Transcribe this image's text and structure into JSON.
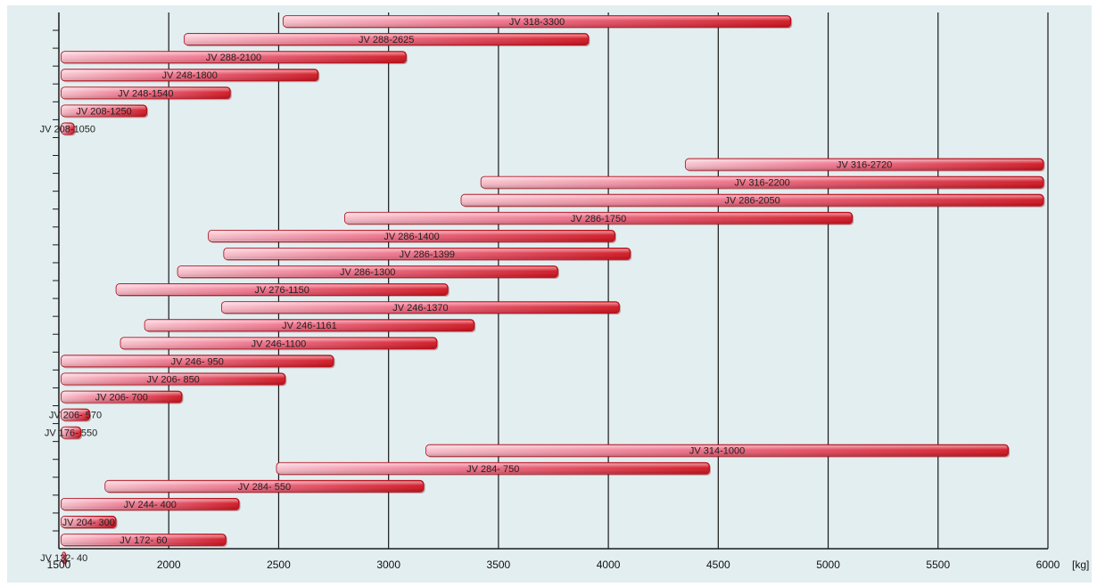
{
  "chart_data": {
    "type": "bar",
    "orientation": "horizontal",
    "style": "floating-range",
    "x_unit": "[kg]",
    "xlim": [
      1500,
      6000
    ],
    "x_ticks": [
      1500,
      2000,
      2500,
      3000,
      3500,
      4000,
      4500,
      5000,
      5500,
      6000
    ],
    "grid": true,
    "colors": {
      "plot_bg": "#e3eef0",
      "bar_light": "#f4a6b8",
      "bar_dark": "#d61420",
      "grid": "#000000"
    },
    "bars": [
      {
        "label": "JV 318-3300",
        "start": 2520,
        "end": 4830
      },
      {
        "label": "JV 288-2625",
        "start": 2070,
        "end": 3910
      },
      {
        "label": "JV 288-2100",
        "start": 1510,
        "end": 3080
      },
      {
        "label": "JV 248-1800",
        "start": 1510,
        "end": 2680
      },
      {
        "label": "JV 248-1540",
        "start": 1510,
        "end": 2280
      },
      {
        "label": "JV 208-1250",
        "start": 1510,
        "end": 1900
      },
      {
        "label": "JV 208-1050",
        "start": 1510,
        "end": 1570
      },
      {
        "label": "",
        "start": null,
        "end": null
      },
      {
        "label": "JV 316-2720",
        "start": 4350,
        "end": 5980
      },
      {
        "label": "JV 316-2200",
        "start": 3420,
        "end": 5980
      },
      {
        "label": "JV 286-2050",
        "start": 3330,
        "end": 5980
      },
      {
        "label": "JV 286-1750",
        "start": 2800,
        "end": 5110
      },
      {
        "label": "JV 286-1400",
        "start": 2180,
        "end": 4030
      },
      {
        "label": "JV 286-1399",
        "start": 2250,
        "end": 4100
      },
      {
        "label": "JV 286-1300",
        "start": 2040,
        "end": 3770
      },
      {
        "label": "JV 276-1150",
        "start": 1760,
        "end": 3270
      },
      {
        "label": "JV 246-1370",
        "start": 2240,
        "end": 4050
      },
      {
        "label": "JV 246-1161",
        "start": 1890,
        "end": 3390
      },
      {
        "label": "JV 246-1100",
        "start": 1780,
        "end": 3220
      },
      {
        "label": "JV 246- 950",
        "start": 1510,
        "end": 2750
      },
      {
        "label": "JV 206- 850",
        "start": 1510,
        "end": 2530
      },
      {
        "label": "JV 206- 700",
        "start": 1510,
        "end": 2060
      },
      {
        "label": "JV 206- 570",
        "start": 1510,
        "end": 1640
      },
      {
        "label": "JV 176- 550",
        "start": 1510,
        "end": 1600
      },
      {
        "label": "JV 314-1000",
        "start": 3170,
        "end": 5820
      },
      {
        "label": "JV 284- 750",
        "start": 2490,
        "end": 4460
      },
      {
        "label": "JV 284- 550",
        "start": 1710,
        "end": 3160
      },
      {
        "label": "JV 244- 400",
        "start": 1510,
        "end": 2320
      },
      {
        "label": "JV 204- 300",
        "start": 1510,
        "end": 1760
      },
      {
        "label": "JV 172- 60",
        "start": 1510,
        "end": 2260
      },
      {
        "label": "JV 132- 40",
        "start": 1515,
        "end": 1530
      }
    ]
  }
}
